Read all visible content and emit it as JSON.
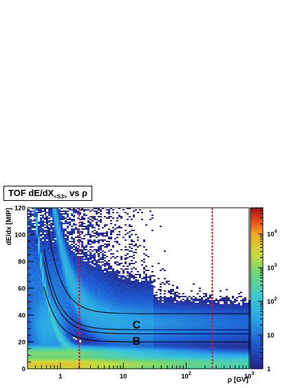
{
  "chart_data": {
    "type": "heatmap",
    "title_main": "TOF dE/dX",
    "title_sub": "<S3>",
    "title_tail": "vs ρ",
    "xlabel": "ρ [GV]",
    "ylabel": "dE/dx [MIP]",
    "x_scale": "log",
    "xlim": [
      0.3,
      1000
    ],
    "ylim": [
      0,
      120
    ],
    "x_ticks": [
      {
        "value": 1,
        "label": "1"
      },
      {
        "value": 10,
        "label": "10"
      },
      {
        "value": 100,
        "label": "10",
        "exp": "2"
      },
      {
        "value": 1000,
        "label": "10",
        "exp": "3"
      }
    ],
    "y_ticks": [
      0,
      20,
      40,
      60,
      80,
      100,
      120
    ],
    "colorbar": {
      "scale": "log",
      "range": [
        1,
        60000
      ],
      "ticks": [
        {
          "value": 1,
          "label": "1"
        },
        {
          "value": 10,
          "label": "10"
        },
        {
          "value": 100,
          "label": "10",
          "exp": "2"
        },
        {
          "value": 1000,
          "label": "10",
          "exp": "3"
        },
        {
          "value": 10000,
          "label": "10",
          "exp": "4"
        }
      ]
    },
    "vertical_cuts": [
      2,
      260
    ],
    "cut_color": "#e0102a",
    "cut_curves_plateaus": [
      20,
      26,
      29,
      41
    ],
    "band_labels": [
      {
        "text": "C",
        "x": 12,
        "y": 33
      },
      {
        "text": "B",
        "x": 12,
        "y": 21
      }
    ]
  }
}
